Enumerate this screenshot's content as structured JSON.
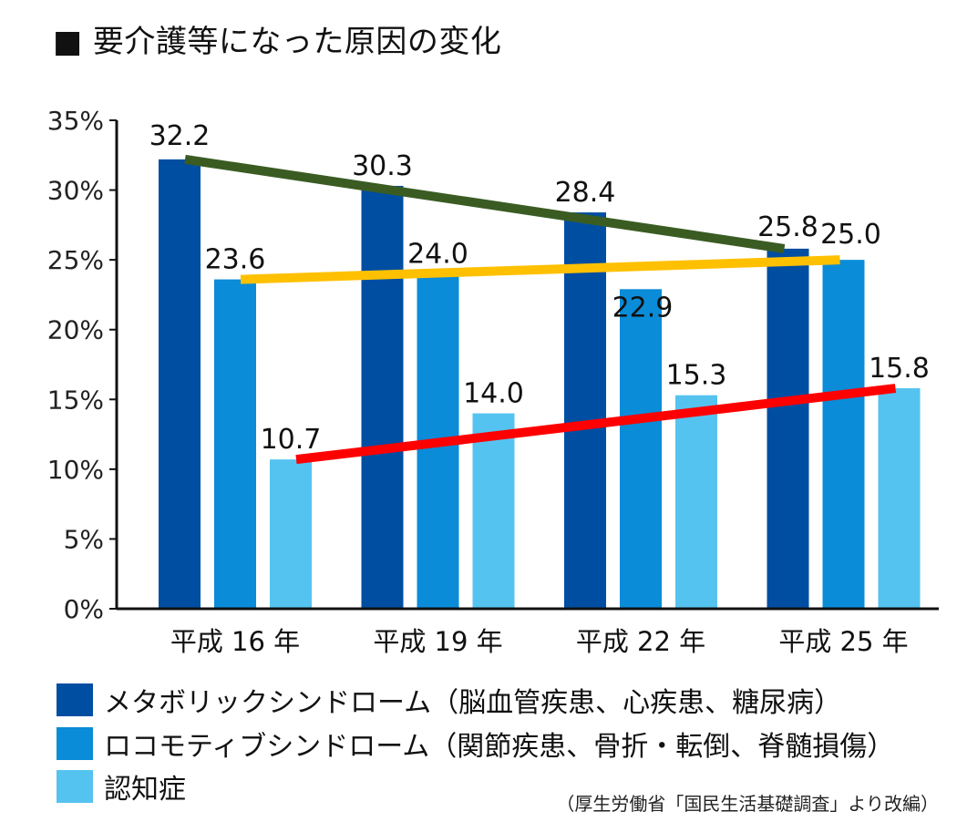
{
  "title": "■ 要介護等になった原因の変化",
  "source": "（厚生労働省「国民生活基礎調査」より改編）",
  "chart_data": {
    "type": "bar",
    "categories": [
      "平成 16 年",
      "平成 19 年",
      "平成 22 年",
      "平成 25 年"
    ],
    "series": [
      {
        "name": "メタボリックシンドローム（脳血管疾患、心疾患、糖尿病）",
        "color": "#004EA2",
        "values": [
          32.2,
          30.3,
          28.4,
          25.8
        ],
        "labels": [
          "32.2",
          "30.3",
          "28.4",
          "25.8"
        ]
      },
      {
        "name": "ロコモティブシンドローム（関節疾患、骨折・転倒、脊髄損傷）",
        "color": "#0A8CD8",
        "values": [
          23.6,
          24.0,
          22.9,
          25.0
        ],
        "labels": [
          "23.6",
          "24.0",
          "22.9",
          "25.0"
        ]
      },
      {
        "name": "認知症",
        "color": "#55C3F0",
        "values": [
          10.7,
          14.0,
          15.3,
          15.8
        ],
        "labels": [
          "10.7",
          "14.0",
          "15.3",
          "15.8"
        ]
      }
    ],
    "trend_lines": [
      {
        "series": 0,
        "color": "#3A5C23",
        "from": [
          32.2
        ],
        "to": [
          25.8
        ]
      },
      {
        "series": 1,
        "color": "#FFC000",
        "from": [
          23.6
        ],
        "to": [
          25.0
        ]
      },
      {
        "series": 2,
        "color": "#FF0000",
        "from": [
          10.7
        ],
        "to": [
          15.8
        ]
      }
    ],
    "y_ticks": [
      "0%",
      "5%",
      "10%",
      "15%",
      "20%",
      "25%",
      "30%",
      "35%"
    ],
    "ylim": [
      0,
      35
    ],
    "xlabel": "",
    "ylabel": "",
    "grid": false,
    "legend_position": "bottom"
  }
}
